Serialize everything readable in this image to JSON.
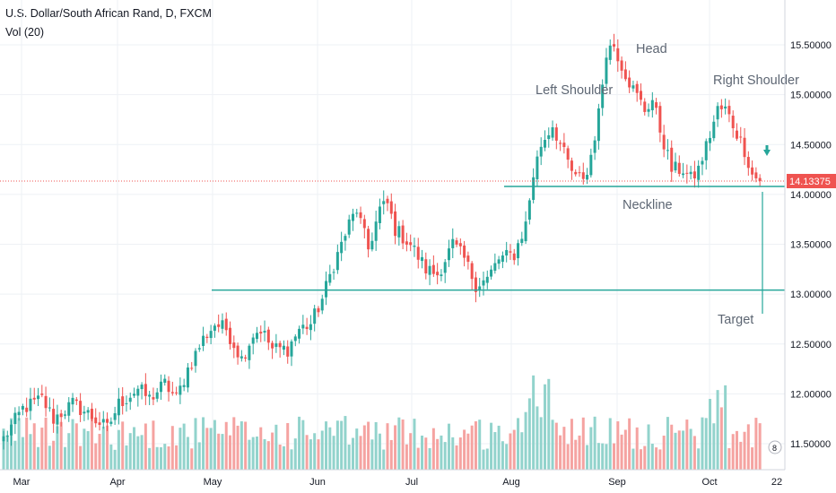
{
  "header": {
    "title": "U.S. Dollar/South African Rand, D, FXCM",
    "volume_label": "Vol (20)"
  },
  "colors": {
    "up": "#26a69a",
    "down": "#ef5350",
    "vol_up": "#92d3cc",
    "vol_down": "#f5a3a1",
    "line": "#26a69a",
    "grid": "#eef1f5",
    "price_tag": "#ef5350"
  },
  "price_tag": "14.13375",
  "badge_text": "8",
  "chart_data": {
    "type": "candlestick",
    "title": "U.S. Dollar/South African Rand, D, FXCM",
    "ylim": [
      11.35,
      15.85
    ],
    "yticks": [
      "15.50000",
      "15.00000",
      "14.50000",
      "14.00000",
      "13.50000",
      "13.00000",
      "12.50000",
      "12.00000",
      "11.50000"
    ],
    "ytick_values": [
      15.5,
      15.0,
      14.5,
      14.0,
      13.5,
      13.0,
      12.5,
      12.0,
      11.5
    ],
    "xticks": [
      "Mar",
      "Apr",
      "May",
      "Jun",
      "Jul",
      "Aug",
      "Sep",
      "Oct",
      "22"
    ],
    "last_price": 14.13375,
    "series": [
      {
        "name": "U.S. Dollar/South African Rand",
        "anchors": [
          [
            0,
            11.55
          ],
          [
            5,
            11.85
          ],
          [
            10,
            11.95
          ],
          [
            13,
            11.75
          ],
          [
            18,
            11.9
          ],
          [
            22,
            11.8
          ],
          [
            27,
            11.65
          ],
          [
            30,
            11.9
          ],
          [
            35,
            12.05
          ],
          [
            38,
            11.95
          ],
          [
            42,
            12.1
          ],
          [
            45,
            11.95
          ],
          [
            48,
            12.25
          ],
          [
            52,
            12.55
          ],
          [
            55,
            12.7
          ],
          [
            58,
            12.65
          ],
          [
            62,
            12.35
          ],
          [
            65,
            12.6
          ],
          [
            67,
            12.65
          ],
          [
            70,
            12.45
          ],
          [
            74,
            12.45
          ],
          [
            77,
            12.65
          ],
          [
            80,
            12.7
          ],
          [
            83,
            12.95
          ],
          [
            86,
            13.3
          ],
          [
            90,
            13.7
          ],
          [
            92,
            13.85
          ],
          [
            95,
            13.45
          ],
          [
            98,
            13.85
          ],
          [
            100,
            13.9
          ],
          [
            102,
            13.65
          ],
          [
            106,
            13.5
          ],
          [
            110,
            13.25
          ],
          [
            113,
            13.2
          ],
          [
            117,
            13.5
          ],
          [
            120,
            13.35
          ],
          [
            123,
            13.1
          ],
          [
            126,
            13.15
          ],
          [
            129,
            13.35
          ],
          [
            133,
            13.4
          ],
          [
            136,
            13.7
          ],
          [
            138,
            14.2
          ],
          [
            140,
            14.5
          ],
          [
            143,
            14.7
          ],
          [
            146,
            14.4
          ],
          [
            149,
            14.15
          ],
          [
            152,
            14.2
          ],
          [
            155,
            14.8
          ],
          [
            157,
            15.45
          ],
          [
            159,
            15.5
          ],
          [
            161,
            15.3
          ],
          [
            164,
            15.05
          ],
          [
            167,
            14.85
          ],
          [
            169,
            14.95
          ],
          [
            171,
            14.65
          ],
          [
            174,
            14.25
          ],
          [
            177,
            14.25
          ],
          [
            179,
            14.15
          ],
          [
            181,
            14.25
          ],
          [
            184,
            14.6
          ],
          [
            186,
            14.85
          ],
          [
            188,
            14.85
          ],
          [
            190,
            14.7
          ],
          [
            193,
            14.45
          ],
          [
            195,
            14.2
          ],
          [
            197,
            14.13375
          ]
        ]
      }
    ],
    "lines": [
      {
        "label": "Neckline",
        "price": 14.08
      },
      {
        "label": "Target",
        "price": 13.04
      }
    ],
    "annotations": [
      "Left Shoulder",
      "Head",
      "Right Shoulder",
      "Neckline",
      "Target"
    ]
  }
}
